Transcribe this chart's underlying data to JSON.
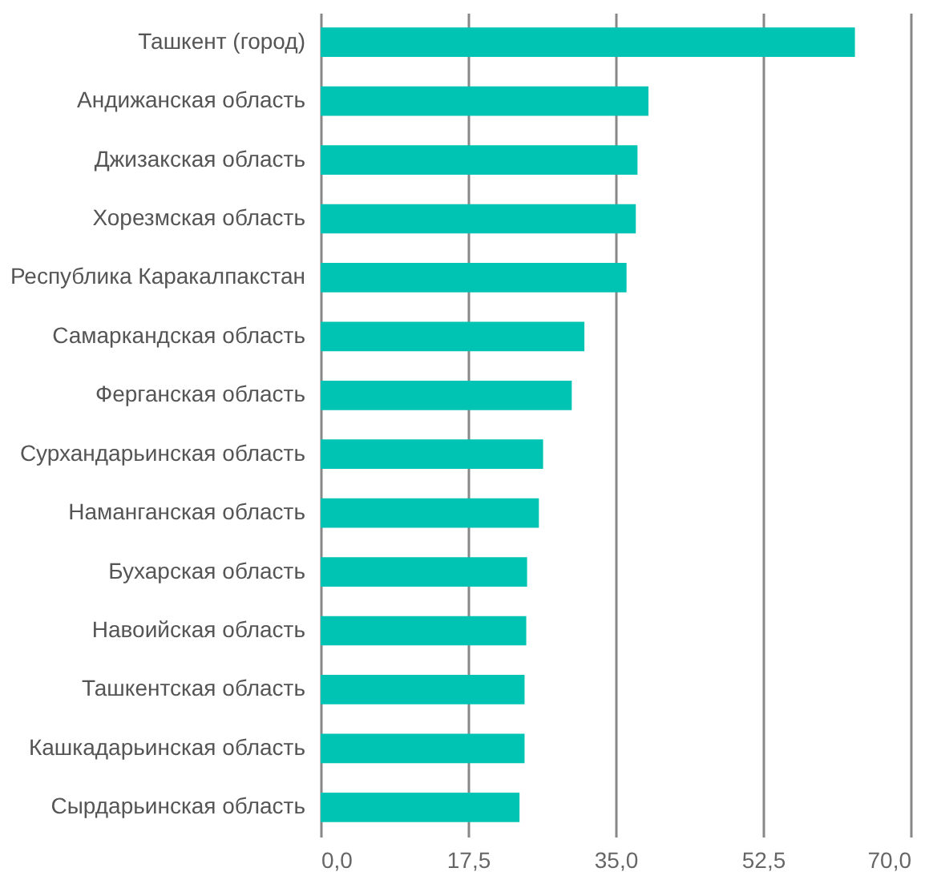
{
  "chart_data": {
    "type": "bar",
    "orientation": "horizontal",
    "categories": [
      "Ташкент (город)",
      "Андижанская область",
      "Джизакская область",
      "Хорезмская область",
      "Республика Каракалпакстан",
      "Самаркандская область",
      "Ферганская область",
      "Сурхандарьинская область",
      "Наманганская область",
      "Бухарская область",
      "Навоийская область",
      "Ташкентская область",
      "Кашкадарьинская область",
      "Сырдарьинская область"
    ],
    "values": [
      63.4,
      38.9,
      37.6,
      37.4,
      36.3,
      31.3,
      29.8,
      26.4,
      25.9,
      24.5,
      24.4,
      24.2,
      24.2,
      23.6
    ],
    "color": "#00c4b3",
    "xlim": [
      0,
      70
    ],
    "xticks": [
      {
        "value": 0,
        "label": "0,0"
      },
      {
        "value": 17.5,
        "label": "17,5"
      },
      {
        "value": 35,
        "label": "35,0"
      },
      {
        "value": 52.5,
        "label": "52,5"
      },
      {
        "value": 70,
        "label": "70,0"
      }
    ],
    "grid": "x"
  }
}
